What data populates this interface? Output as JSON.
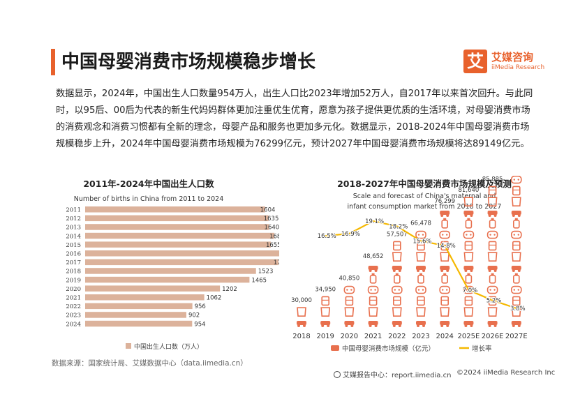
{
  "header": {
    "title": "中国母婴消费市场规模稳步增长"
  },
  "logo": {
    "mark": "艾",
    "name_cn": "艾媒咨询",
    "name_en": "iiMedia Research"
  },
  "paragraph": "数据显示，2024年，中国出生人口数量954万人，出生人口比2023年增加52万人，自2017年以来首次回升。与此同时，以95后、00后为代表的新生代妈妈群体更加注重优生优育，愿意为孩子提供更优质的生活环境，对母婴消费市场的消费观念和消费习惯都有全新的理念，母婴产品和服务也更加多元化。数据显示，2018-2024年中国母婴消费市场规模稳步上升，2024年中国母婴消费市场规模为76299亿元，预计2027年中国母婴消费市场规模将达89149亿元。",
  "chart_data": [
    {
      "type": "bar",
      "orientation": "horizontal",
      "title": "2011年-2024年中国出生人口数",
      "subtitle": "Number of births in China from 2011 to 2024",
      "categories": [
        "2011",
        "2012",
        "2013",
        "2014",
        "2015",
        "2016",
        "2017",
        "2018",
        "2019",
        "2020",
        "2021",
        "2022",
        "2023",
        "2024"
      ],
      "series": [
        {
          "name": "中国出生人口数（万人）",
          "values": [
            1604,
            1635,
            1640,
            1687,
            1655,
            1786,
            1723,
            1523,
            1465,
            1202,
            1062,
            956,
            902,
            954
          ]
        }
      ],
      "color": "#dcb29b",
      "legend": "bottom"
    },
    {
      "type": "bar+line",
      "title": "2018-2027年中国母婴消费市场规模及预测",
      "subtitle_lines": [
        "Scale and forecast of China's maternal and",
        "infant consumption market from 2018 to 2027"
      ],
      "categories": [
        "2018",
        "2019",
        "2020",
        "2021",
        "2022",
        "2023",
        "2024",
        "2025E",
        "2026E",
        "2027E"
      ],
      "series": [
        {
          "name": "中国母婴消费市场规模（亿元）",
          "kind": "pictogram",
          "values": [
            30000,
            34950,
            40850,
            48652,
            57507,
            66478,
            76299,
            81640,
            85885,
            89149
          ],
          "labels": [
            "30,000",
            "34,950",
            "40,850",
            "48,652",
            "57,507",
            "66,478",
            "76,299",
            "81,640",
            "85,885",
            "89,149"
          ]
        },
        {
          "name": "增长率",
          "kind": "line",
          "unit": "%",
          "x": [
            "2019",
            "2020",
            "2021",
            "2022",
            "2023",
            "2024",
            "2025E",
            "2026E",
            "2027E"
          ],
          "values": [
            16.5,
            16.9,
            19.1,
            18.2,
            15.6,
            14.8,
            7.0,
            5.2,
            3.8
          ],
          "labels": [
            "16.5%",
            "16.9%",
            "19.1%",
            "18.2%",
            "15.6%",
            "14.8%",
            "7.0%",
            "5.2%",
            "3.8%"
          ]
        }
      ],
      "bar_color": "#e8704e",
      "line_color": "#f5b800",
      "legend": "bottom"
    }
  ],
  "source": "数据来源：国家统计局、艾媒数据中心（data.iimedia.cn）",
  "footer": {
    "left": "艾媒报告中心：report.iimedia.cn",
    "right": "©2024  iiMedia Research  Inc"
  }
}
